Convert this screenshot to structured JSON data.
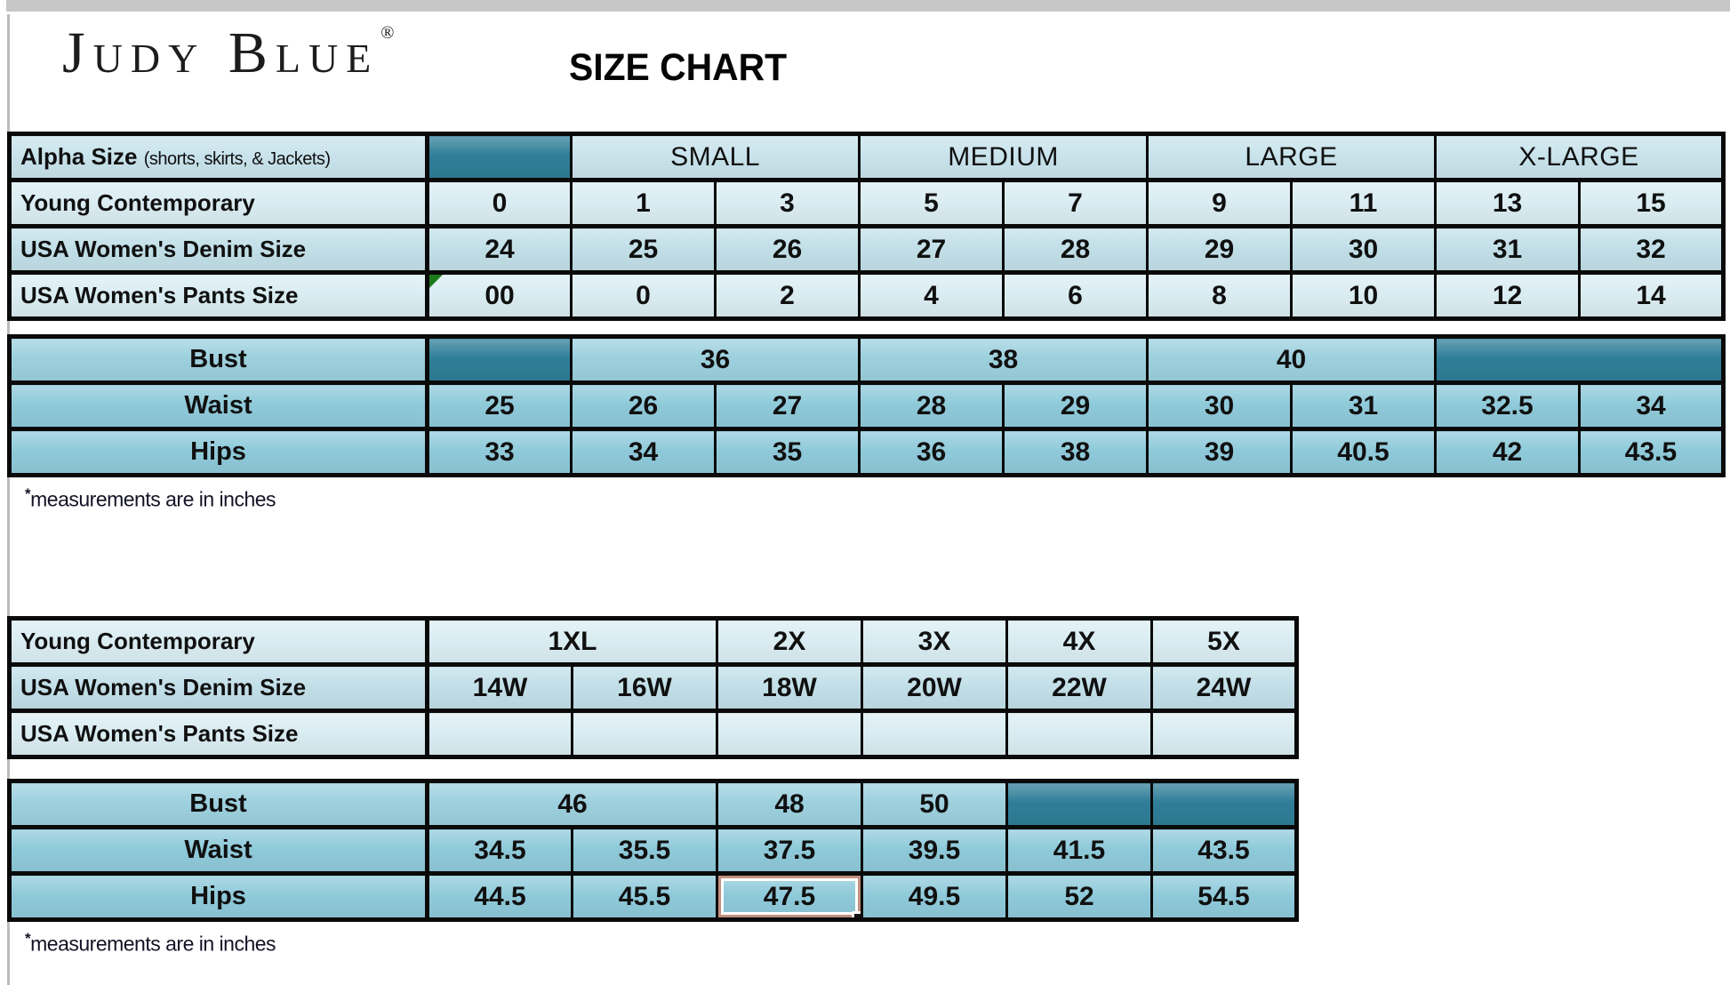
{
  "header": {
    "brand": "Judy Blue",
    "brand_mark": "®",
    "title": "SIZE CHART"
  },
  "colors": {
    "teal": "#2f7e98",
    "header_blue": "#c9e3ec",
    "light_blue": "#daedf2",
    "mid_blue": "#c2dfe8",
    "medium_blue": "#8fcada",
    "bust_blue": "#9dd0de",
    "border_black": "#0a0a0a",
    "selection_border": "#c0907f"
  },
  "alpha_table": {
    "label_main": "Alpha Size",
    "label_note": "(shorts, skirts, & Jackets)",
    "groups": [
      "SMALL",
      "MEDIUM",
      "LARGE",
      "X-LARGE"
    ],
    "rows": [
      {
        "label": "Young Contemporary",
        "values": [
          "0",
          "1",
          "3",
          "5",
          "7",
          "9",
          "11",
          "13",
          "15"
        ]
      },
      {
        "label": "USA Women's Denim Size",
        "values": [
          "24",
          "25",
          "26",
          "27",
          "28",
          "29",
          "30",
          "31",
          "32"
        ]
      },
      {
        "label": "USA Women's Pants Size",
        "values": [
          "00",
          "0",
          "2",
          "4",
          "6",
          "8",
          "10",
          "12",
          "14"
        ]
      }
    ]
  },
  "measure_table": {
    "bust_label": "Bust",
    "bust_groups": [
      "36",
      "38",
      "40"
    ],
    "waist_label": "Waist",
    "waist_values": [
      "25",
      "26",
      "27",
      "28",
      "29",
      "30",
      "31",
      "32.5",
      "34"
    ],
    "hips_label": "Hips",
    "hips_values": [
      "33",
      "34",
      "35",
      "36",
      "38",
      "39",
      "40.5",
      "42",
      "43.5"
    ]
  },
  "plus_alpha_table": {
    "contemporary_label": "Young Contemporary",
    "group_first": "1XL",
    "groups_rest": [
      "2X",
      "3X",
      "4X",
      "5X"
    ],
    "denim_label": "USA Women's Denim Size",
    "denim_values": [
      "14W",
      "16W",
      "18W",
      "20W",
      "22W",
      "24W"
    ],
    "pants_label": "USA Women's Pants Size"
  },
  "plus_measure_table": {
    "bust_label": "Bust",
    "bust_first": "46",
    "bust_rest": [
      "48",
      "50"
    ],
    "waist_label": "Waist",
    "waist_values": [
      "34.5",
      "35.5",
      "37.5",
      "39.5",
      "41.5",
      "43.5"
    ],
    "hips_label": "Hips",
    "hips_values": [
      "44.5",
      "45.5",
      "47.5",
      "49.5",
      "52",
      "54.5"
    ]
  },
  "footnotes": {
    "asterisk": "*",
    "text": "measurements are in inches"
  }
}
